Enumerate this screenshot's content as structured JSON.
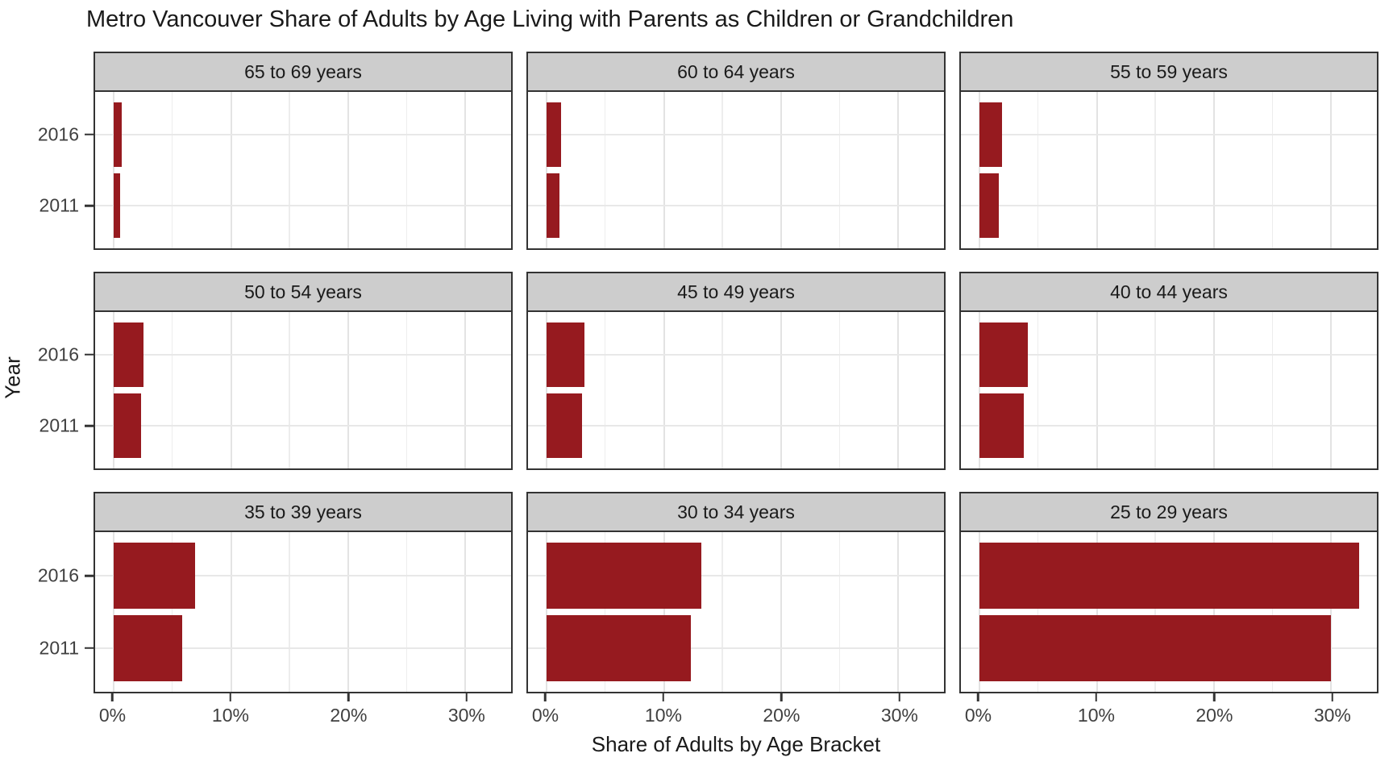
{
  "title": "Metro Vancouver Share of Adults by Age Living with Parents as Children or Grandchildren",
  "chart_data": {
    "type": "bar",
    "orientation": "horizontal",
    "title": "Metro Vancouver Share of Adults by Age Living with Parents as Children or Grandchildren",
    "xlabel": "Share of Adults by Age Bracket",
    "ylabel": "Year",
    "categories": [
      "2016",
      "2011"
    ],
    "x_tick_labels": [
      "0%",
      "10%",
      "20%",
      "30%"
    ],
    "x_tick_values": [
      0,
      10,
      20,
      30
    ],
    "x_minor_values": [
      5,
      15,
      25
    ],
    "xlim": [
      -1.6,
      33.9
    ],
    "grid": true,
    "legend": false,
    "bar_color": "#961a1f",
    "facets": [
      {
        "label": "65 to 69 years",
        "values": [
          0.7,
          0.5
        ]
      },
      {
        "label": "60 to 64 years",
        "values": [
          1.2,
          1.1
        ]
      },
      {
        "label": "55 to 59 years",
        "values": [
          1.9,
          1.6
        ]
      },
      {
        "label": "50 to 54 years",
        "values": [
          2.5,
          2.3
        ]
      },
      {
        "label": "45 to 49 years",
        "values": [
          3.2,
          3.0
        ]
      },
      {
        "label": "40 to 44 years",
        "values": [
          4.1,
          3.8
        ]
      },
      {
        "label": "35 to 39 years",
        "values": [
          6.9,
          5.8
        ]
      },
      {
        "label": "30 to 34 years",
        "values": [
          13.2,
          12.3
        ]
      },
      {
        "label": "25 to 29 years",
        "values": [
          32.4,
          30.0
        ]
      }
    ]
  }
}
